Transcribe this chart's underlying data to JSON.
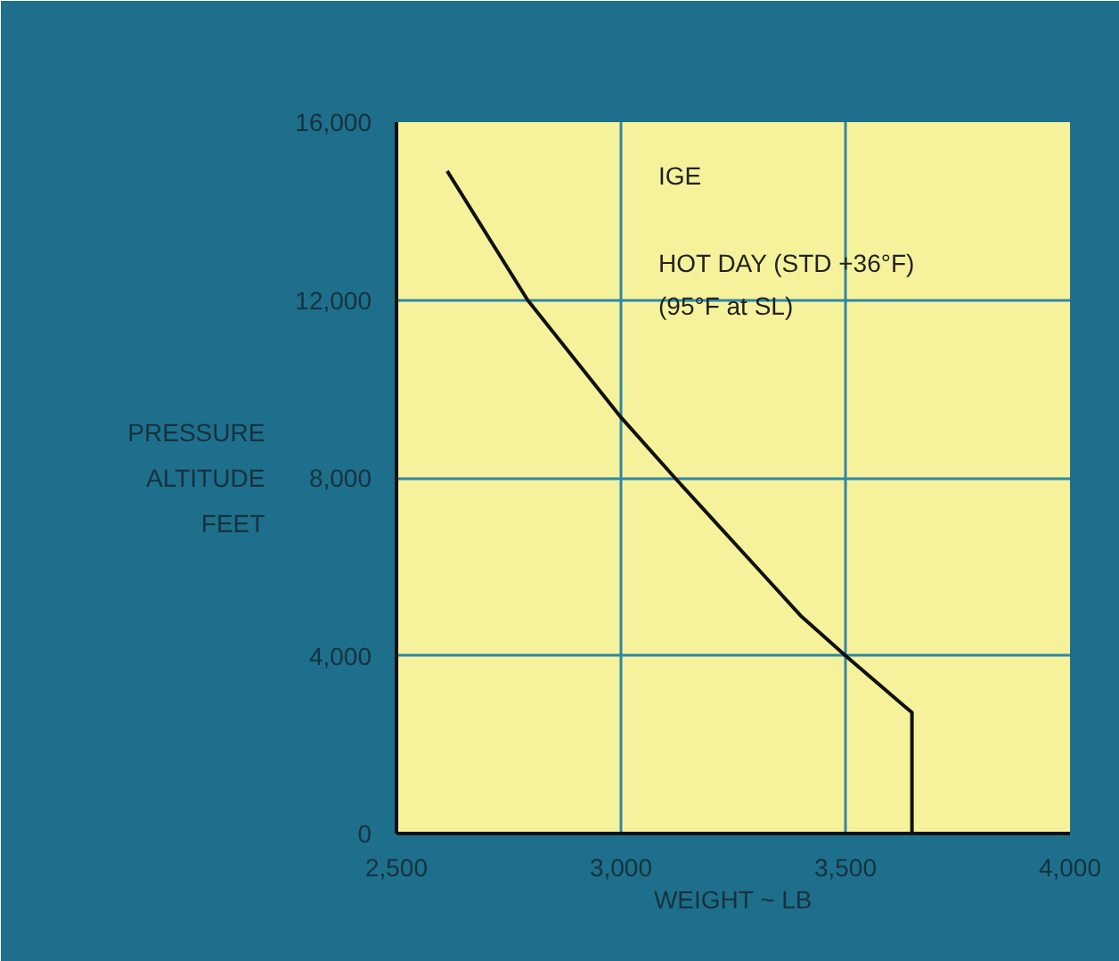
{
  "chart_data": {
    "type": "line",
    "xlabel": "WEIGHT ~ LB",
    "ylabel": "PRESSURE\nALTITUDE\nFEET",
    "annotations": [
      "IGE",
      "HOT DAY (STD +36°F)",
      "(95°F at SL)"
    ],
    "series": [
      {
        "color": "#111111",
        "x": [
          2613,
          2792,
          3000,
          3120,
          3214,
          3308,
          3402,
          3500,
          3648,
          3648
        ],
        "values": [
          14900,
          12000,
          9360,
          8000,
          6960,
          5920,
          4880,
          4000,
          2720,
          0
        ]
      }
    ],
    "xlim": [
      2500,
      4000
    ],
    "xticks": [
      {
        "value": 2500,
        "label": "2,500"
      },
      {
        "value": 3000,
        "label": "3,000"
      },
      {
        "value": 3500,
        "label": "3,500"
      },
      {
        "value": 4000,
        "label": "4,000"
      }
    ],
    "ylim": [
      0,
      16000
    ],
    "yticks": [
      0,
      {
        "value": 4000,
        "label": "4,000"
      },
      {
        "value": 8000,
        "label": "8,000"
      },
      {
        "value": 12000,
        "label": "12,000"
      },
      {
        "value": 16000,
        "label": "16,000"
      }
    ],
    "grid": true,
    "marker": "none",
    "line_style": "solid"
  }
}
